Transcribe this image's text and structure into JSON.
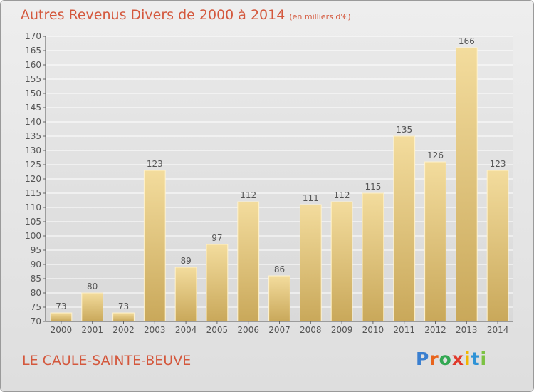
{
  "title": "Autres Revenus Divers de 2000 à 2014",
  "subtitle": "(en milliers d'€)",
  "location": "LE CAULE-SAINTE-BEUVE",
  "logo": {
    "letters": [
      "P",
      "r",
      "o",
      "x",
      "i",
      "t",
      "i"
    ],
    "colors": [
      "#3a7fd0",
      "#e8641c",
      "#33a852",
      "#e03a2c",
      "#f2b600",
      "#2f93d6",
      "#7cc243"
    ]
  },
  "colors": {
    "bar_top": "#f3dc9d",
    "bar_bottom": "#c9a85a",
    "title": "#d4583d",
    "grid": "#ffffff"
  },
  "chart_data": {
    "type": "bar",
    "categories": [
      "2000",
      "2001",
      "2002",
      "2003",
      "2004",
      "2005",
      "2006",
      "2007",
      "2008",
      "2009",
      "2010",
      "2011",
      "2012",
      "2013",
      "2014"
    ],
    "values": [
      73,
      80,
      73,
      123,
      89,
      97,
      112,
      86,
      111,
      112,
      115,
      135,
      126,
      166,
      123
    ],
    "ylim": [
      70,
      170
    ],
    "yticks": [
      70,
      75,
      80,
      85,
      90,
      95,
      100,
      105,
      110,
      115,
      120,
      125,
      130,
      135,
      140,
      145,
      150,
      155,
      160,
      165,
      170
    ],
    "grid": true,
    "data_labels": true
  }
}
